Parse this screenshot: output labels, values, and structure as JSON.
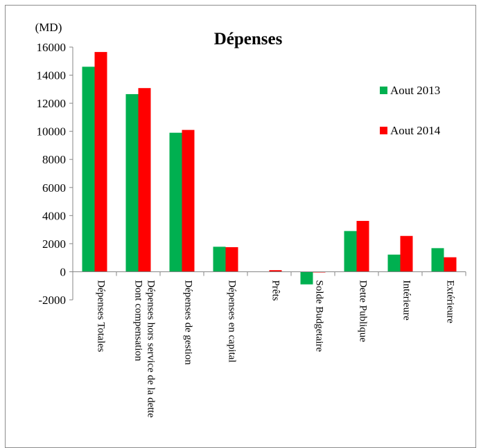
{
  "chart_data": {
    "type": "bar",
    "title": "Dépenses",
    "unit_label": "(MD)",
    "xlabel": "",
    "ylabel": "",
    "ylim": [
      -2000,
      16000
    ],
    "yticks": [
      -2000,
      0,
      2000,
      4000,
      6000,
      8000,
      10000,
      12000,
      14000,
      16000
    ],
    "grid": false,
    "legend_position": "right",
    "categories": [
      [
        "Dépenses Totales"
      ],
      [
        "Dépenses hors service de la dette",
        "Dont compensation"
      ],
      [
        "Dépenses de gestion"
      ],
      [
        "Dépenses en capital"
      ],
      [
        "Prêts"
      ],
      [
        "Solde Budgetaire"
      ],
      [
        "Dette Publique"
      ],
      [
        "Intérieure"
      ],
      [
        "Extérieure"
      ]
    ],
    "series": [
      {
        "name": "Aout 2013",
        "color": "#00b050",
        "values": [
          14600,
          12650,
          9900,
          1780,
          0,
          -900,
          2900,
          1220,
          1680
        ]
      },
      {
        "name": "Aout 2014",
        "color": "#ff0000",
        "values": [
          15650,
          13080,
          10100,
          1750,
          110,
          -50,
          3620,
          2550,
          1030
        ]
      }
    ]
  }
}
